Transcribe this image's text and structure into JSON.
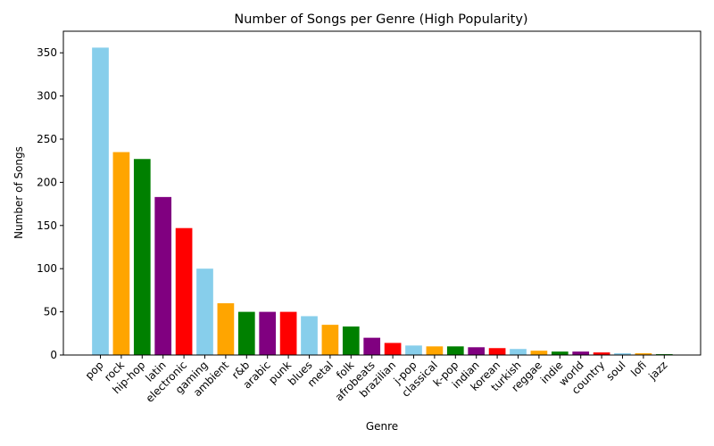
{
  "chart_data": {
    "type": "bar",
    "title": "Number of Songs per Genre (High Popularity)",
    "xlabel": "Genre",
    "ylabel": "Number of Songs",
    "ylim": [
      0,
      375
    ],
    "yticks": [
      0,
      50,
      100,
      150,
      200,
      250,
      300,
      350
    ],
    "grid": false,
    "categories": [
      "pop",
      "rock",
      "hip-hop",
      "latin",
      "electronic",
      "gaming",
      "ambient",
      "r&b",
      "arabic",
      "punk",
      "blues",
      "metal",
      "folk",
      "afrobeats",
      "brazilian",
      "j-pop",
      "classical",
      "k-pop",
      "indian",
      "korean",
      "turkish",
      "reggae",
      "indie",
      "world",
      "country",
      "soul",
      "lofi",
      "jazz"
    ],
    "values": [
      356,
      235,
      227,
      183,
      147,
      100,
      60,
      50,
      50,
      50,
      45,
      35,
      33,
      20,
      14,
      11,
      10,
      10,
      9,
      8,
      7,
      5,
      4,
      4,
      3,
      2,
      2,
      1
    ],
    "colors": [
      "#87ceeb",
      "#ffa500",
      "#008000",
      "#800080",
      "#ff0000"
    ]
  }
}
